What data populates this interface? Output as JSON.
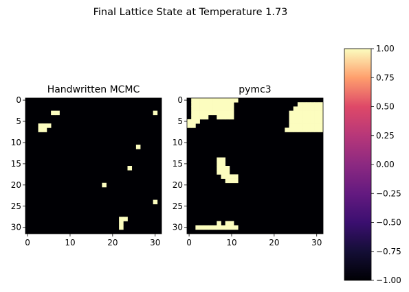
{
  "figure": {
    "suptitle": "Final Lattice State at Temperature 1.73"
  },
  "chart_data": [
    {
      "type": "heatmap",
      "title": "Handwritten MCMC",
      "grid_size": 32,
      "value_range": [
        -1,
        1
      ],
      "background_value": -1,
      "x_ticks": [
        0,
        10,
        20,
        30
      ],
      "y_ticks": [
        0,
        5,
        10,
        15,
        20,
        25,
        30
      ],
      "positive_cells": [
        [
          3,
          6
        ],
        [
          3,
          7
        ],
        [
          6,
          3
        ],
        [
          6,
          4
        ],
        [
          6,
          5
        ],
        [
          7,
          3
        ],
        [
          7,
          4
        ],
        [
          3,
          30
        ],
        [
          11,
          26
        ],
        [
          16,
          24
        ],
        [
          20,
          18
        ],
        [
          24,
          30
        ],
        [
          28,
          22
        ],
        [
          28,
          23
        ],
        [
          29,
          22
        ],
        [
          30,
          22
        ]
      ]
    },
    {
      "type": "heatmap",
      "title": "pymc3",
      "grid_size": 32,
      "value_range": [
        -1,
        1
      ],
      "background_value": -1,
      "x_ticks": [
        0,
        10,
        20,
        30
      ],
      "y_ticks": [
        0,
        5,
        10,
        15,
        20,
        25,
        30
      ],
      "positive_cells": [
        [
          0,
          1
        ],
        [
          0,
          2
        ],
        [
          0,
          3
        ],
        [
          0,
          4
        ],
        [
          0,
          5
        ],
        [
          0,
          6
        ],
        [
          0,
          7
        ],
        [
          0,
          8
        ],
        [
          0,
          9
        ],
        [
          0,
          10
        ],
        [
          0,
          11
        ],
        [
          1,
          1
        ],
        [
          1,
          2
        ],
        [
          1,
          3
        ],
        [
          1,
          4
        ],
        [
          1,
          5
        ],
        [
          1,
          6
        ],
        [
          1,
          7
        ],
        [
          1,
          8
        ],
        [
          1,
          9
        ],
        [
          1,
          10
        ],
        [
          2,
          1
        ],
        [
          2,
          2
        ],
        [
          2,
          3
        ],
        [
          2,
          4
        ],
        [
          2,
          5
        ],
        [
          2,
          6
        ],
        [
          2,
          7
        ],
        [
          2,
          8
        ],
        [
          2,
          9
        ],
        [
          2,
          10
        ],
        [
          3,
          1
        ],
        [
          3,
          2
        ],
        [
          3,
          3
        ],
        [
          3,
          4
        ],
        [
          3,
          5
        ],
        [
          3,
          6
        ],
        [
          3,
          7
        ],
        [
          3,
          8
        ],
        [
          3,
          9
        ],
        [
          3,
          10
        ],
        [
          4,
          1
        ],
        [
          4,
          2
        ],
        [
          4,
          3
        ],
        [
          4,
          4
        ],
        [
          4,
          7
        ],
        [
          4,
          8
        ],
        [
          4,
          9
        ],
        [
          4,
          10
        ],
        [
          5,
          0
        ],
        [
          5,
          1
        ],
        [
          5,
          2
        ],
        [
          6,
          0
        ],
        [
          6,
          1
        ],
        [
          1,
          26
        ],
        [
          1,
          27
        ],
        [
          1,
          28
        ],
        [
          1,
          29
        ],
        [
          1,
          30
        ],
        [
          1,
          31
        ],
        [
          2,
          25
        ],
        [
          2,
          26
        ],
        [
          2,
          27
        ],
        [
          2,
          28
        ],
        [
          2,
          29
        ],
        [
          2,
          30
        ],
        [
          2,
          31
        ],
        [
          3,
          24
        ],
        [
          3,
          25
        ],
        [
          3,
          26
        ],
        [
          3,
          27
        ],
        [
          3,
          28
        ],
        [
          3,
          29
        ],
        [
          3,
          30
        ],
        [
          3,
          31
        ],
        [
          4,
          24
        ],
        [
          4,
          25
        ],
        [
          4,
          26
        ],
        [
          4,
          27
        ],
        [
          4,
          28
        ],
        [
          4,
          29
        ],
        [
          4,
          30
        ],
        [
          4,
          31
        ],
        [
          5,
          24
        ],
        [
          5,
          25
        ],
        [
          5,
          26
        ],
        [
          5,
          27
        ],
        [
          5,
          28
        ],
        [
          5,
          29
        ],
        [
          5,
          30
        ],
        [
          5,
          31
        ],
        [
          6,
          24
        ],
        [
          6,
          25
        ],
        [
          6,
          26
        ],
        [
          6,
          27
        ],
        [
          6,
          28
        ],
        [
          6,
          29
        ],
        [
          6,
          30
        ],
        [
          6,
          31
        ],
        [
          7,
          23
        ],
        [
          7,
          24
        ],
        [
          7,
          25
        ],
        [
          7,
          26
        ],
        [
          7,
          27
        ],
        [
          7,
          28
        ],
        [
          7,
          29
        ],
        [
          7,
          30
        ],
        [
          7,
          31
        ],
        [
          14,
          7
        ],
        [
          14,
          8
        ],
        [
          15,
          7
        ],
        [
          15,
          8
        ],
        [
          16,
          7
        ],
        [
          16,
          8
        ],
        [
          16,
          9
        ],
        [
          17,
          7
        ],
        [
          17,
          8
        ],
        [
          17,
          9
        ],
        [
          18,
          8
        ],
        [
          18,
          9
        ],
        [
          18,
          10
        ],
        [
          18,
          11
        ],
        [
          19,
          9
        ],
        [
          19,
          10
        ],
        [
          19,
          11
        ],
        [
          29,
          7
        ],
        [
          29,
          9
        ],
        [
          29,
          10
        ],
        [
          30,
          2
        ],
        [
          30,
          3
        ],
        [
          30,
          4
        ],
        [
          30,
          5
        ],
        [
          30,
          6
        ],
        [
          30,
          7
        ],
        [
          30,
          8
        ],
        [
          30,
          9
        ],
        [
          30,
          10
        ],
        [
          30,
          11
        ]
      ]
    },
    {
      "type": "colorbar",
      "colormap": "magma",
      "range": [
        -1,
        1
      ],
      "ticks": [
        "1.00",
        "0.75",
        "0.50",
        "0.25",
        "0.00",
        "−0.25",
        "−0.50",
        "−0.75",
        "−1.00"
      ]
    }
  ]
}
